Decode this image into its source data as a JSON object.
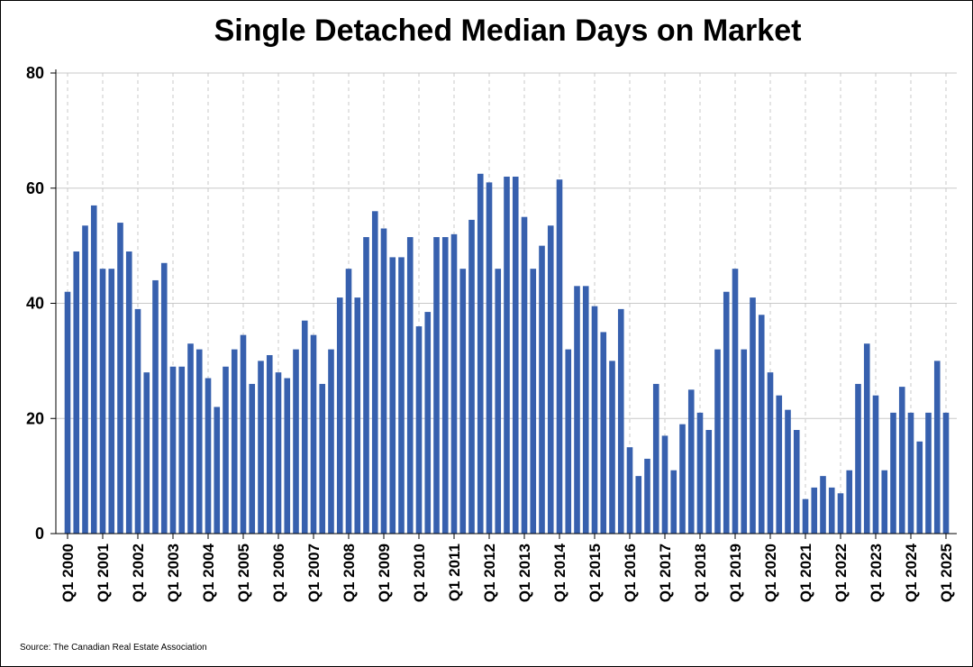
{
  "chart_data": {
    "type": "bar",
    "title": "Single Detached Median Days on Market",
    "xlabel": "",
    "ylabel": "",
    "ylim": [
      0,
      80
    ],
    "yticks": [
      0,
      20,
      40,
      60,
      80
    ],
    "x_tick_labels": [
      "Q1 2000",
      "Q1 2001",
      "Q1 2002",
      "Q1 2003",
      "Q1 2004",
      "Q1 2005",
      "Q1 2006",
      "Q1 2007",
      "Q1 2008",
      "Q1 2009",
      "Q1 2010",
      "Q1 2011",
      "Q1 2012",
      "Q1 2013",
      "Q1 2014",
      "Q1 2015",
      "Q1 2016",
      "Q1 2017",
      "Q1 2018",
      "Q1 2019",
      "Q1 2020",
      "Q1 2021",
      "Q1 2022",
      "Q1 2023",
      "Q1 2024",
      "Q1 2025"
    ],
    "bar_color": "#3760AE",
    "grid": {
      "horizontal": true,
      "vertical_dashed": true
    },
    "values": [
      42,
      49,
      53.5,
      57,
      46,
      46,
      54,
      49,
      39,
      28,
      44,
      47,
      29,
      29,
      33,
      32,
      27,
      22,
      29,
      32,
      34.5,
      26,
      30,
      31,
      28,
      27,
      32,
      37,
      34.5,
      26,
      32,
      41,
      46,
      41,
      51.5,
      56,
      53,
      48,
      48,
      51.5,
      36,
      38.5,
      51.5,
      51.5,
      52,
      46,
      54.5,
      62.5,
      61,
      46,
      62,
      62,
      55,
      46,
      50,
      53.5,
      61.5,
      32,
      43,
      43,
      39.5,
      35,
      30,
      39,
      15,
      10,
      13,
      26,
      17,
      11,
      19,
      25,
      21,
      18,
      32,
      42,
      46,
      32,
      41,
      38,
      28,
      24,
      21.5,
      18,
      6,
      8,
      10,
      8,
      7,
      11,
      26,
      33,
      24,
      11,
      21,
      25.5,
      21,
      16,
      21,
      30,
      21
    ]
  },
  "source": "Source: The Canadian Real Estate Association"
}
